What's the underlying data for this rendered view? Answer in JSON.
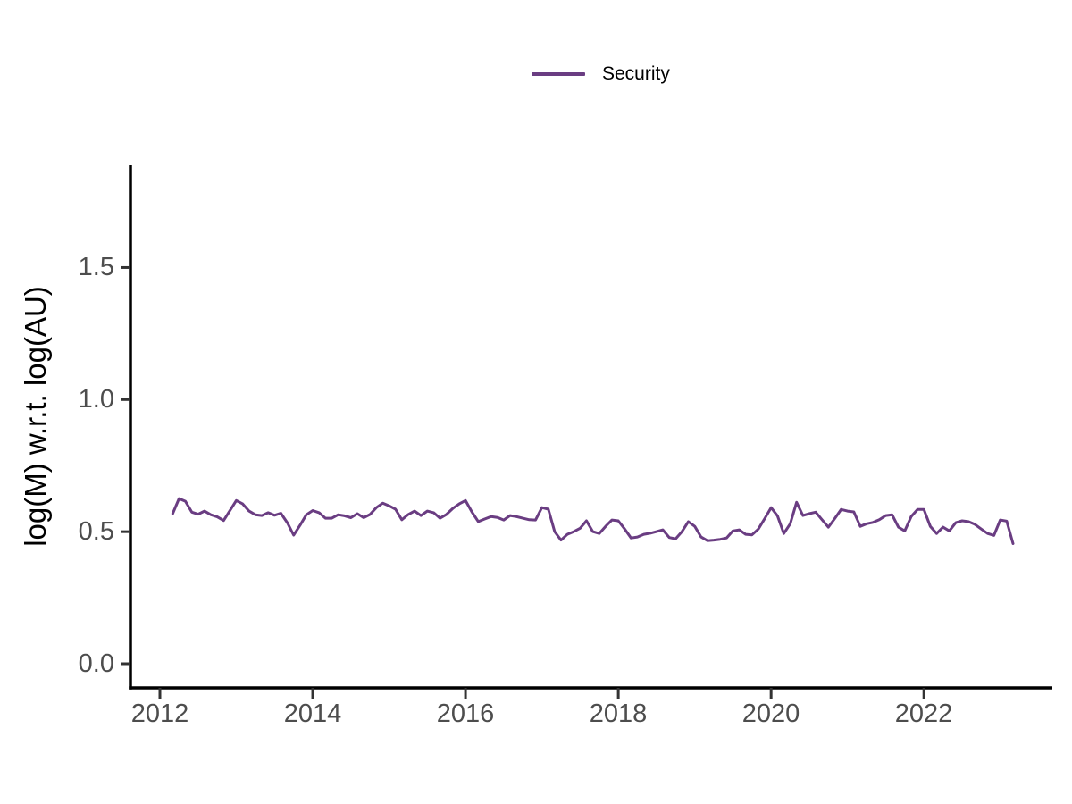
{
  "chart_data": {
    "type": "line",
    "title": "",
    "xlabel": "",
    "ylabel": "log(M) w.r.t. log(AU)",
    "legend": {
      "label": "Security",
      "position": "top-center"
    },
    "grid": false,
    "axis_color": "#000000",
    "tick_label_color": "#4D4D4D",
    "x_ticks": {
      "values": [
        2012,
        2014,
        2016,
        2018,
        2020,
        2022
      ],
      "labels": [
        "2012",
        "2014",
        "2016",
        "2018",
        "2020",
        "2022"
      ]
    },
    "y_ticks": {
      "values": [
        0.0,
        0.5,
        1.0,
        1.5
      ],
      "labels": [
        "0.0",
        "0.5",
        "1.0",
        "1.5"
      ]
    },
    "xlim": [
      2011.6,
      2023.68
    ],
    "ylim": [
      -0.09,
      1.89
    ],
    "series": [
      {
        "name": "Security",
        "color": "#6A3D82",
        "x_start_year": 2012.167,
        "x_step_years": 0.083333,
        "values": [
          0.568,
          0.625,
          0.615,
          0.574,
          0.566,
          0.578,
          0.564,
          0.556,
          0.542,
          0.58,
          0.618,
          0.605,
          0.578,
          0.564,
          0.561,
          0.572,
          0.562,
          0.57,
          0.534,
          0.487,
          0.524,
          0.564,
          0.58,
          0.572,
          0.551,
          0.551,
          0.564,
          0.56,
          0.553,
          0.568,
          0.553,
          0.565,
          0.591,
          0.608,
          0.598,
          0.585,
          0.545,
          0.565,
          0.578,
          0.561,
          0.578,
          0.572,
          0.551,
          0.565,
          0.588,
          0.605,
          0.618,
          0.575,
          0.538,
          0.548,
          0.557,
          0.554,
          0.544,
          0.561,
          0.557,
          0.551,
          0.545,
          0.544,
          0.591,
          0.585,
          0.5,
          0.468,
          0.49,
          0.5,
          0.513,
          0.541,
          0.5,
          0.493,
          0.52,
          0.544,
          0.541,
          0.51,
          0.476,
          0.48,
          0.49,
          0.494,
          0.5,
          0.507,
          0.478,
          0.473,
          0.5,
          0.538,
          0.52,
          0.48,
          0.466,
          0.468,
          0.471,
          0.476,
          0.503,
          0.507,
          0.49,
          0.488,
          0.51,
          0.55,
          0.591,
          0.56,
          0.493,
          0.53,
          0.611,
          0.561,
          0.568,
          0.574,
          0.545,
          0.517,
          0.55,
          0.584,
          0.578,
          0.575,
          0.52,
          0.53,
          0.535,
          0.545,
          0.561,
          0.564,
          0.517,
          0.503,
          0.557,
          0.584,
          0.584,
          0.52,
          0.493,
          0.517,
          0.503,
          0.534,
          0.541,
          0.538,
          0.528,
          0.51,
          0.493,
          0.486,
          0.544,
          0.54,
          0.455
        ]
      }
    ]
  }
}
